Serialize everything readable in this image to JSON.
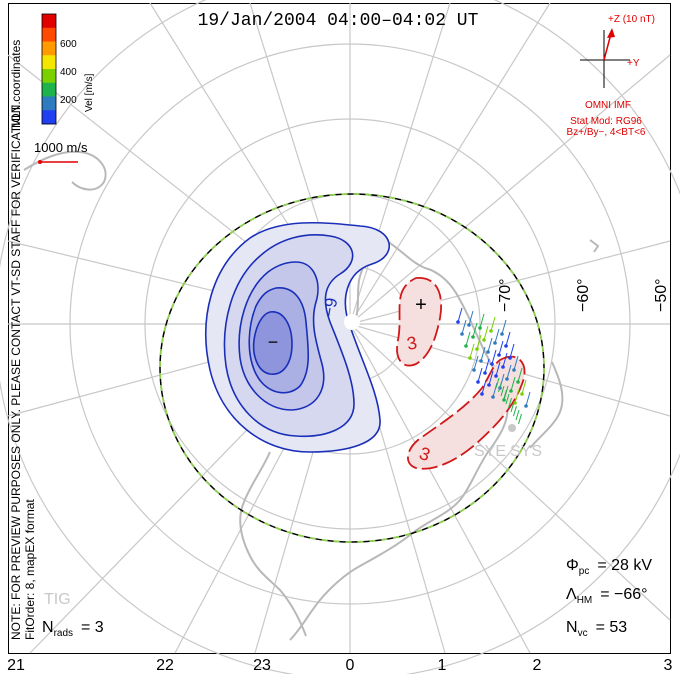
{
  "title": "19/Jan/2004 04:00–04:02 UT",
  "colorbar": {
    "label": "Vel [m/s]",
    "ticks": [
      "600",
      "400",
      "200"
    ],
    "colors": [
      "#e00000",
      "#ff4a00",
      "#ff9a00",
      "#f5e600",
      "#7bd100",
      "#1fb34b",
      "#2f7bbf",
      "#1f3ff0"
    ]
  },
  "left_side": {
    "coordinates": "MLT coordinates",
    "notice": "NOTE: FOR PREVIEW PURPOSES ONLY. PLEASE CONTACT VT-SD STAFF FOR VERIFICATION.",
    "fit": "FitOrder: 8, mapEX format"
  },
  "vector_scale": "1000 m/s",
  "imf": {
    "z_label": "+Z (10 nT)",
    "y_label": "+Y",
    "source": "OMNI IMF",
    "model": "Stat Mod: RG96",
    "condition": "Bz+/By−, 4<BT<6"
  },
  "latitude_labels": [
    "−70°",
    "−60°",
    "−50°"
  ],
  "mlt_labels": [
    "21",
    "22",
    "23",
    "0",
    "1",
    "2",
    "3"
  ],
  "contours": {
    "negative_label": "−9",
    "positive_label_1": "3",
    "positive_label_2": "3",
    "min_marker": "−",
    "max_marker": "+"
  },
  "stations": [
    "SYE",
    "SYS",
    "TIG"
  ],
  "stats": {
    "phi_symbol": "Φ",
    "phi_sub": "pc",
    "phi_value": "= 28 kV",
    "lambda_symbol": "Λ",
    "lambda_sub": "HM",
    "lambda_value": "= −66°",
    "nvc_symbol": "N",
    "nvc_sub": "vc",
    "nvc_value": "= 53",
    "nrads_symbol": "N",
    "nrads_sub": "rads",
    "nrads_value": "= 3"
  }
}
